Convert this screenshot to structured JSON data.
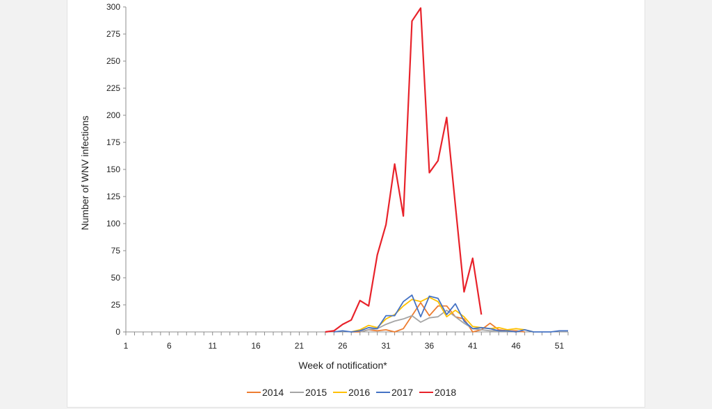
{
  "chart_data": {
    "type": "line",
    "title": "",
    "xlabel": "Week of notification*",
    "ylabel": "Number of WNV infections",
    "xlim": [
      1,
      52
    ],
    "ylim": [
      0,
      300
    ],
    "x_ticks": [
      1,
      6,
      11,
      16,
      21,
      26,
      31,
      36,
      41,
      46,
      51
    ],
    "y_ticks": [
      0,
      25,
      50,
      75,
      100,
      125,
      150,
      175,
      200,
      225,
      250,
      275,
      300
    ],
    "grid": false,
    "legend_position": "bottom",
    "series": [
      {
        "name": "2014",
        "color": "#ed7d31",
        "x": [
          27,
          28,
          29,
          30,
          31,
          32,
          33,
          34,
          35,
          36,
          37,
          38,
          39,
          40,
          41,
          42,
          43,
          44,
          45,
          46,
          47
        ],
        "y": [
          0,
          0,
          2,
          1,
          2,
          0,
          3,
          15,
          27,
          15,
          24,
          24,
          14,
          12,
          0,
          2,
          8,
          2,
          1,
          1,
          0
        ]
      },
      {
        "name": "2015",
        "color": "#a5a5a5",
        "x": [
          28,
          29,
          30,
          31,
          32,
          33,
          34,
          35,
          36,
          37,
          38,
          39,
          40,
          41,
          42,
          43,
          44,
          45,
          46
        ],
        "y": [
          0,
          2,
          3,
          7,
          10,
          12,
          15,
          9,
          13,
          14,
          20,
          14,
          8,
          3,
          2,
          1,
          1,
          1,
          0
        ]
      },
      {
        "name": "2016",
        "color": "#ffc000",
        "x": [
          27,
          28,
          29,
          30,
          31,
          32,
          33,
          34,
          35,
          36,
          37,
          38,
          39,
          40,
          41,
          42,
          43,
          44,
          45,
          46,
          47,
          48
        ],
        "y": [
          0,
          2,
          6,
          4,
          12,
          16,
          24,
          30,
          28,
          32,
          28,
          14,
          20,
          14,
          5,
          4,
          3,
          4,
          2,
          3,
          2,
          0
        ]
      },
      {
        "name": "2017",
        "color": "#4472c4",
        "x": [
          25,
          26,
          27,
          28,
          29,
          30,
          31,
          32,
          33,
          34,
          35,
          36,
          37,
          38,
          39,
          40,
          41,
          42,
          43,
          44,
          45,
          46,
          47,
          48,
          49,
          50,
          51,
          52
        ],
        "y": [
          0,
          1,
          0,
          1,
          4,
          3,
          15,
          15,
          28,
          34,
          14,
          33,
          31,
          16,
          26,
          10,
          3,
          4,
          3,
          1,
          1,
          0,
          2,
          0,
          0,
          0,
          1,
          1
        ]
      },
      {
        "name": "2018",
        "color": "#e8222a",
        "x": [
          24,
          25,
          26,
          27,
          28,
          29,
          30,
          31,
          32,
          33,
          34,
          35,
          36,
          37,
          38,
          39,
          40,
          41,
          42
        ],
        "y": [
          0,
          1,
          7,
          11,
          29,
          24,
          71,
          99,
          155,
          107,
          287,
          299,
          147,
          158,
          198,
          117,
          37,
          68,
          16
        ]
      }
    ]
  }
}
